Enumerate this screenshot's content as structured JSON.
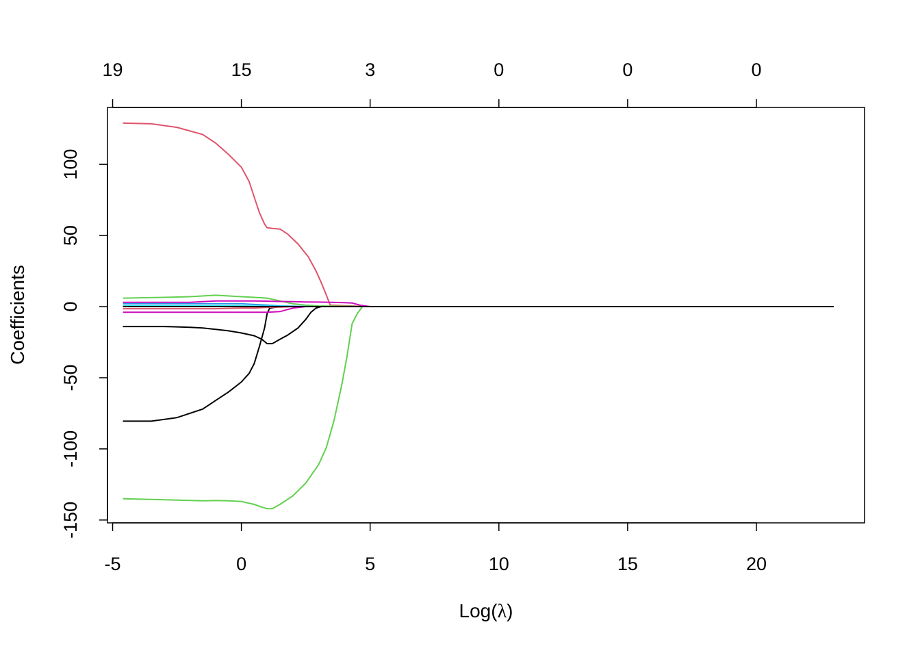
{
  "chart_data": {
    "type": "line",
    "title": "",
    "xlabel_prefix": "Log(",
    "xlabel_symbol": "λ",
    "xlabel_suffix": ")",
    "ylabel": "Coefficients",
    "xlim": [
      -5.2,
      24.2
    ],
    "ylim": [
      -152,
      140
    ],
    "x_ticks": [
      -5,
      0,
      5,
      10,
      15,
      20
    ],
    "x_tick_labels": [
      "-5",
      "0",
      "5",
      "10",
      "15",
      "20"
    ],
    "y_ticks": [
      -150,
      -100,
      -50,
      0,
      50,
      100
    ],
    "y_tick_labels": [
      "-150",
      "-100",
      "-50",
      "0",
      "50",
      "100"
    ],
    "top_ticks": [
      -5,
      0,
      5,
      10,
      15,
      20
    ],
    "top_tick_labels": [
      "19",
      "15",
      "3",
      "0",
      "0",
      "0"
    ],
    "grid": false,
    "series": [
      {
        "color": "#DF536B",
        "x": [
          -4.6,
          -3.5,
          -2.5,
          -1.5,
          -1.0,
          -0.5,
          0.0,
          0.3,
          0.5,
          0.7,
          0.9,
          1.0,
          1.2,
          1.5,
          1.8,
          2.2,
          2.6,
          2.9,
          3.1,
          3.3,
          3.45,
          5.0,
          23.0
        ],
        "y": [
          129,
          128.5,
          126,
          121,
          115,
          107,
          98,
          88,
          77,
          66,
          58,
          55.5,
          55,
          54.5,
          51,
          44,
          35,
          25,
          17,
          8,
          1,
          0,
          0
        ]
      },
      {
        "color": "#61D04F",
        "x": [
          -4.6,
          -3.5,
          -2.5,
          -1.5,
          -1.0,
          -0.5,
          0.0,
          0.5,
          0.8,
          1.0,
          1.2,
          1.5,
          2.0,
          2.5,
          3.0,
          3.3,
          3.6,
          3.9,
          4.1,
          4.3,
          4.5,
          4.7,
          5.0,
          23.0
        ],
        "y": [
          -135,
          -135.5,
          -136,
          -136.5,
          -136.3,
          -136.5,
          -137,
          -139,
          -141,
          -142,
          -142,
          -139,
          -133,
          -124,
          -111,
          -99,
          -80,
          -55,
          -35,
          -12,
          -5,
          0,
          0,
          0
        ]
      },
      {
        "color": "#61D04F",
        "x": [
          -4.6,
          -3.0,
          -2.0,
          -1.0,
          0.0,
          0.5,
          1.0,
          1.5,
          2.0,
          2.5,
          3.0,
          5.0,
          23.0
        ],
        "y": [
          6,
          6.5,
          7,
          8,
          7,
          6.5,
          6,
          4,
          2,
          1,
          0.5,
          0,
          0
        ]
      },
      {
        "color": "#000000",
        "x": [
          -4.6,
          -3.5,
          -2.5,
          -1.5,
          -1.0,
          -0.5,
          0.0,
          0.3,
          0.5,
          0.7,
          0.9,
          1.0,
          1.1,
          1.5,
          5.0,
          23.0
        ],
        "y": [
          -80.5,
          -80.5,
          -78,
          -72,
          -66,
          -60,
          -53,
          -47,
          -40,
          -28,
          -15,
          -5,
          -1,
          0,
          0,
          0
        ]
      },
      {
        "color": "#000000",
        "x": [
          -4.6,
          -3.0,
          -2.0,
          -1.5,
          -1.0,
          -0.5,
          0.0,
          0.5,
          0.8,
          1.0,
          1.2,
          1.5,
          1.8,
          2.2,
          2.5,
          2.7,
          2.9,
          3.1,
          5.0,
          23.0
        ],
        "y": [
          -14,
          -14,
          -14.5,
          -15,
          -16,
          -17,
          -18.5,
          -20.5,
          -23,
          -26,
          -26,
          -23,
          -20,
          -15,
          -9,
          -4,
          -1,
          0,
          0,
          0
        ]
      },
      {
        "color": "#CD0BBC",
        "x": [
          -4.6,
          -3.0,
          -2.0,
          -1.0,
          0.0,
          0.5,
          1.0,
          1.5,
          2.0,
          2.5,
          3.0,
          3.5,
          4.0,
          4.3,
          4.6,
          5.0,
          23.0
        ],
        "y": [
          3,
          3,
          3,
          4,
          4,
          4,
          3.8,
          3.6,
          3.5,
          3.3,
          3.2,
          3.0,
          2.8,
          2.5,
          1,
          0,
          0
        ]
      },
      {
        "color": "#CD0BBC",
        "x": [
          -4.6,
          -3.0,
          -2.0,
          -1.0,
          0.0,
          0.5,
          1.0,
          1.5,
          1.8,
          2.0,
          2.5,
          5.0,
          23.0
        ],
        "y": [
          -4,
          -4,
          -4,
          -4,
          -4,
          -4,
          -4,
          -3.5,
          -2,
          -1,
          0,
          0,
          0
        ]
      },
      {
        "color": "#2297E6",
        "x": [
          -4.6,
          -3.0,
          -2.0,
          -1.0,
          0.0,
          0.5,
          1.0,
          1.5,
          2.0,
          2.5,
          3.0,
          5.0,
          23.0
        ],
        "y": [
          2,
          2,
          2,
          2,
          2,
          1.5,
          1,
          0.5,
          0.3,
          0.1,
          0,
          0,
          0
        ]
      },
      {
        "color": "#28E2E5",
        "x": [
          -4.6,
          -3.0,
          -2.0,
          -1.0,
          0.0,
          0.5,
          1.0,
          1.5,
          2.0,
          2.5,
          3.0,
          5.0,
          23.0
        ],
        "y": [
          0.5,
          0.5,
          0.5,
          0.5,
          0.5,
          0.4,
          0.3,
          0.2,
          0.1,
          0,
          0,
          0,
          0
        ]
      },
      {
        "color": "#DF536B",
        "x": [
          -4.6,
          -3.0,
          -2.0,
          -1.0,
          0.0,
          0.5,
          1.0,
          1.5,
          2.0,
          3.0,
          5.0,
          23.0
        ],
        "y": [
          -1.5,
          -1.5,
          -1.5,
          -1.5,
          -1,
          -1,
          -0.5,
          -0.3,
          0,
          0,
          0,
          0
        ]
      },
      {
        "color": "#000000",
        "x": [
          -4.6,
          23.0
        ],
        "y": [
          0,
          0
        ]
      }
    ]
  }
}
